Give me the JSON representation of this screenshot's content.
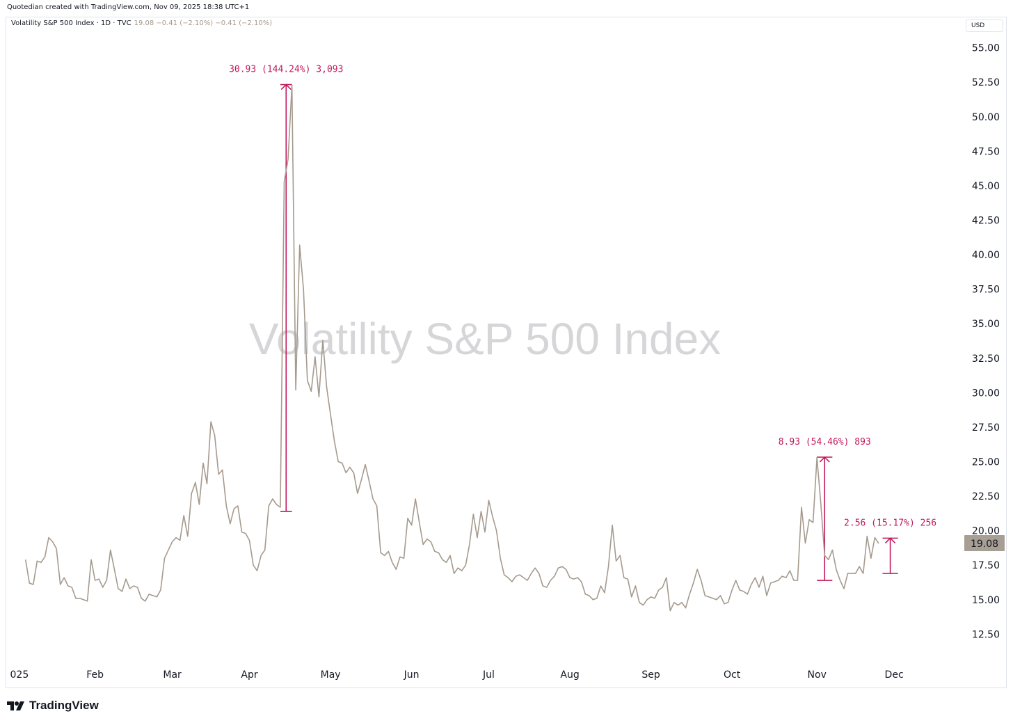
{
  "credit": "Quotedian created with TradingView.com, Nov 09, 2025 18:38 UTC+1",
  "legend": {
    "symbol": "Volatility S&P 500 Index · 1D · TVC",
    "values": "19.08  −0.41 (−2.10%)  −0.41 (−2.10%)"
  },
  "currency": "USD",
  "watermark": "Volatility S&P 500 Index",
  "brand": "TradingView",
  "colors": {
    "line": "#a59a8e",
    "annotation": "#c2185b",
    "badge": "#a89f94"
  },
  "chart_data": {
    "type": "line",
    "title": "",
    "y_ticks": [
      "55.00",
      "52.50",
      "50.00",
      "47.50",
      "45.00",
      "42.50",
      "40.00",
      "37.50",
      "35.00",
      "32.50",
      "30.00",
      "27.50",
      "25.00",
      "22.50",
      "20.00",
      "17.50",
      "15.00",
      "12.50"
    ],
    "ylim": [
      10.3,
      57.2
    ],
    "x_ticks": [
      "025",
      "Feb",
      "Mar",
      "Apr",
      "May",
      "Jun",
      "Jul",
      "Aug",
      "Sep",
      "Oct",
      "Nov",
      "Dec"
    ],
    "x_ticks_index": [
      -4,
      18,
      38,
      58,
      79,
      100,
      120,
      141,
      162,
      183,
      205,
      225
    ],
    "x_range_index": [
      -5,
      243
    ],
    "last_price": "19.08",
    "series": [
      {
        "values": [
          17.9,
          16.2,
          16.1,
          17.8,
          17.7,
          18.1,
          19.5,
          19.2,
          18.7,
          16.1,
          16.6,
          16.0,
          15.9,
          15.1,
          15.1,
          15.0,
          14.9,
          17.9,
          16.4,
          16.5,
          15.9,
          16.4,
          18.6,
          17.2,
          15.8,
          15.6,
          16.5,
          15.8,
          16.0,
          15.9,
          15.1,
          14.9,
          15.4,
          15.3,
          15.2,
          15.7,
          18.0,
          18.6,
          19.2,
          19.5,
          19.3,
          21.1,
          19.6,
          22.7,
          23.5,
          21.9,
          24.9,
          23.4,
          27.9,
          26.9,
          24.1,
          24.4,
          21.8,
          20.5,
          21.6,
          21.8,
          19.9,
          19.8,
          19.3,
          17.5,
          17.1,
          18.2,
          18.6,
          21.8,
          22.3,
          21.9,
          21.7,
          45.3,
          46.9,
          52.3,
          30.2,
          40.7,
          37.5,
          30.9,
          30.1,
          32.6,
          29.7,
          33.8,
          30.4,
          28.4,
          26.5,
          25.0,
          24.9,
          24.2,
          24.6,
          24.2,
          22.7,
          23.7,
          24.8,
          23.6,
          22.3,
          21.8,
          18.4,
          18.2,
          18.5,
          17.7,
          17.2,
          18.1,
          18.0,
          20.9,
          20.4,
          22.3,
          20.6,
          19.0,
          19.4,
          19.2,
          18.5,
          18.4,
          17.9,
          17.7,
          18.2,
          16.9,
          17.3,
          17.1,
          17.5,
          19.0,
          21.2,
          19.5,
          21.4,
          19.9,
          22.2,
          21.0,
          20.0,
          18.0,
          16.8,
          16.6,
          16.3,
          16.7,
          16.8,
          16.6,
          16.4,
          16.9,
          17.3,
          16.9,
          16.0,
          15.9,
          16.4,
          16.7,
          17.3,
          17.4,
          17.2,
          16.6,
          16.5,
          16.6,
          16.3,
          15.4,
          15.3,
          15.0,
          15.1,
          16.0,
          15.5,
          17.4,
          20.4,
          17.8,
          18.2,
          16.6,
          16.5,
          15.2,
          16.0,
          14.8,
          14.6,
          15.0,
          15.2,
          15.1,
          15.7,
          15.9,
          16.6,
          14.2,
          14.8,
          14.6,
          14.8,
          14.4,
          15.4,
          16.2,
          17.2,
          16.4,
          15.3,
          15.2,
          15.1,
          15.0,
          15.3,
          14.7,
          14.8,
          15.7,
          16.4,
          15.7,
          15.6,
          15.4,
          16.1,
          16.6,
          15.9,
          16.7,
          15.3,
          16.2,
          16.3,
          16.4,
          16.7,
          16.6,
          17.1,
          16.4,
          16.4,
          21.7,
          19.1,
          20.8,
          20.6,
          25.3,
          22.0,
          18.2,
          17.9,
          18.6,
          17.2,
          16.4,
          15.8,
          16.9,
          16.9,
          16.9,
          17.4,
          16.9,
          19.6,
          18.0,
          19.5,
          19.08
        ]
      }
    ],
    "annotations": [
      {
        "label": "30.93 (144.24%) 3,093",
        "from_index": 66,
        "to_index": 69,
        "from": 21.4,
        "to": 52.33
      },
      {
        "label": "8.93 (54.46%) 893",
        "from_index": 205,
        "to_index": 209,
        "from": 16.4,
        "to": 25.33
      },
      {
        "label": "2.56 (15.17%) 256",
        "from_index": 222,
        "to_index": 226,
        "from": 16.9,
        "to": 19.46
      }
    ]
  }
}
